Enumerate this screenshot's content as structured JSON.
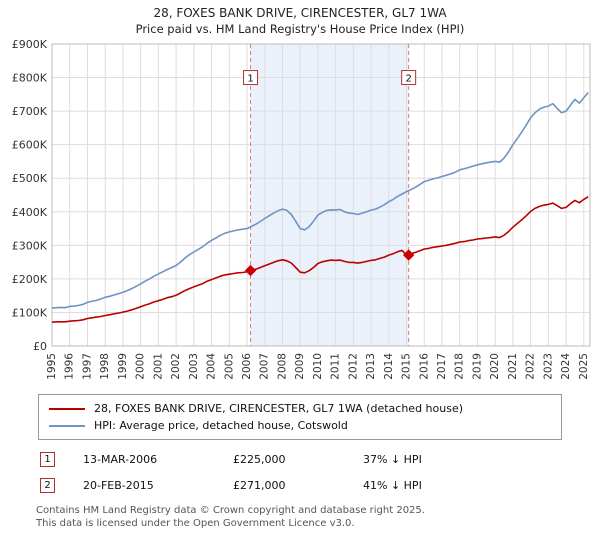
{
  "title": {
    "line1": "28, FOXES BANK DRIVE, CIRENCESTER, GL7 1WA",
    "line2": "Price paid vs. HM Land Registry's House Price Index (HPI)"
  },
  "chart_data": {
    "type": "line",
    "x_range": [
      1995,
      2025.35
    ],
    "y_range": [
      0,
      900
    ],
    "y_units": "GBP thousands",
    "grid": true,
    "legend_position": "bottom",
    "x_ticks": [
      1995,
      1996,
      1997,
      1998,
      1999,
      2000,
      2001,
      2002,
      2003,
      2004,
      2005,
      2006,
      2007,
      2008,
      2009,
      2010,
      2011,
      2012,
      2013,
      2014,
      2015,
      2016,
      2017,
      2018,
      2019,
      2020,
      2021,
      2022,
      2023,
      2024,
      2025
    ],
    "y_ticks": [
      {
        "v": 0,
        "label": "£0"
      },
      {
        "v": 100,
        "label": "£100K"
      },
      {
        "v": 200,
        "label": "£200K"
      },
      {
        "v": 300,
        "label": "£300K"
      },
      {
        "v": 400,
        "label": "£400K"
      },
      {
        "v": 500,
        "label": "£500K"
      },
      {
        "v": 600,
        "label": "£600K"
      },
      {
        "v": 700,
        "label": "£700K"
      },
      {
        "v": 800,
        "label": "£800K"
      },
      {
        "v": 900,
        "label": "£900K"
      }
    ],
    "band": {
      "x1": 2006.2,
      "x2": 2015.12
    },
    "sales": [
      {
        "n": "1",
        "x": 2006.2,
        "y": 225,
        "box_y": 800
      },
      {
        "n": "2",
        "x": 2015.12,
        "y": 271,
        "box_y": 800
      }
    ],
    "series": [
      {
        "name": "28, FOXES BANK DRIVE, CIRENCESTER, GL7 1WA (detached house)",
        "color": "#bb0000",
        "x_start": 1995,
        "x_step": 0.25,
        "values": [
          71,
          72,
          72,
          72,
          74,
          75,
          76,
          78,
          82,
          84,
          86,
          88,
          91,
          93,
          96,
          98,
          101,
          104,
          108,
          112,
          117,
          122,
          126,
          131,
          135,
          139,
          144,
          147,
          151,
          158,
          165,
          171,
          176,
          181,
          186,
          193,
          198,
          203,
          208,
          212,
          214,
          216,
          218,
          219,
          221,
          225,
          229,
          234,
          239,
          244,
          249,
          254,
          257,
          254,
          247,
          234,
          220,
          218,
          224,
          234,
          246,
          251,
          254,
          256,
          255,
          256,
          252,
          249,
          249,
          247,
          249,
          252,
          255,
          257,
          261,
          265,
          271,
          275,
          281,
          285,
          271,
          275,
          279,
          284,
          289,
          291,
          294,
          296,
          298,
          300,
          303,
          306,
          310,
          311,
          314,
          316,
          319,
          320,
          322,
          323,
          325,
          323,
          330,
          341,
          354,
          365,
          376,
          388,
          401,
          410,
          416,
          420,
          422,
          426,
          418,
          410,
          413,
          424,
          434,
          427,
          437,
          445
        ]
      },
      {
        "name": "HPI: Average price, detached house, Cotswold",
        "color": "#6f94c4",
        "x_start": 1995,
        "x_step": 0.25,
        "values": [
          113,
          114,
          115,
          114,
          118,
          119,
          121,
          124,
          130,
          133,
          136,
          140,
          145,
          148,
          152,
          156,
          160,
          165,
          171,
          178,
          185,
          193,
          200,
          208,
          215,
          221,
          228,
          234,
          240,
          250,
          262,
          272,
          280,
          288,
          296,
          306,
          315,
          322,
          330,
          336,
          340,
          343,
          346,
          348,
          350,
          356,
          363,
          371,
          380,
          388,
          396,
          403,
          408,
          404,
          392,
          372,
          350,
          346,
          355,
          372,
          390,
          398,
          404,
          406,
          405,
          407,
          400,
          396,
          395,
          392,
          396,
          400,
          405,
          408,
          414,
          421,
          430,
          437,
          446,
          453,
          460,
          466,
          473,
          481,
          490,
          494,
          498,
          501,
          505,
          509,
          513,
          518,
          525,
          528,
          532,
          536,
          540,
          543,
          546,
          548,
          550,
          548,
          560,
          578,
          600,
          618,
          638,
          658,
          680,
          695,
          706,
          712,
          715,
          722,
          708,
          695,
          700,
          718,
          735,
          724,
          740,
          755
        ]
      }
    ],
    "colors": {
      "band": "#dbe5f5",
      "sale_line": "#d98080",
      "sale_box_border": "#aa3333",
      "marker": "#cc0000",
      "grid": "#dddddd",
      "plot_border": "#bbbbbb",
      "tick_text": "#333333"
    }
  },
  "annotations": [
    {
      "num": "1",
      "date": "13-MAR-2006",
      "price": "£225,000",
      "hpi": "37% ↓ HPI"
    },
    {
      "num": "2",
      "date": "20-FEB-2015",
      "price": "£271,000",
      "hpi": "41% ↓ HPI"
    }
  ],
  "footer": {
    "line1": "Contains HM Land Registry data © Crown copyright and database right 2025.",
    "line2": "This data is licensed under the Open Government Licence v3.0."
  }
}
